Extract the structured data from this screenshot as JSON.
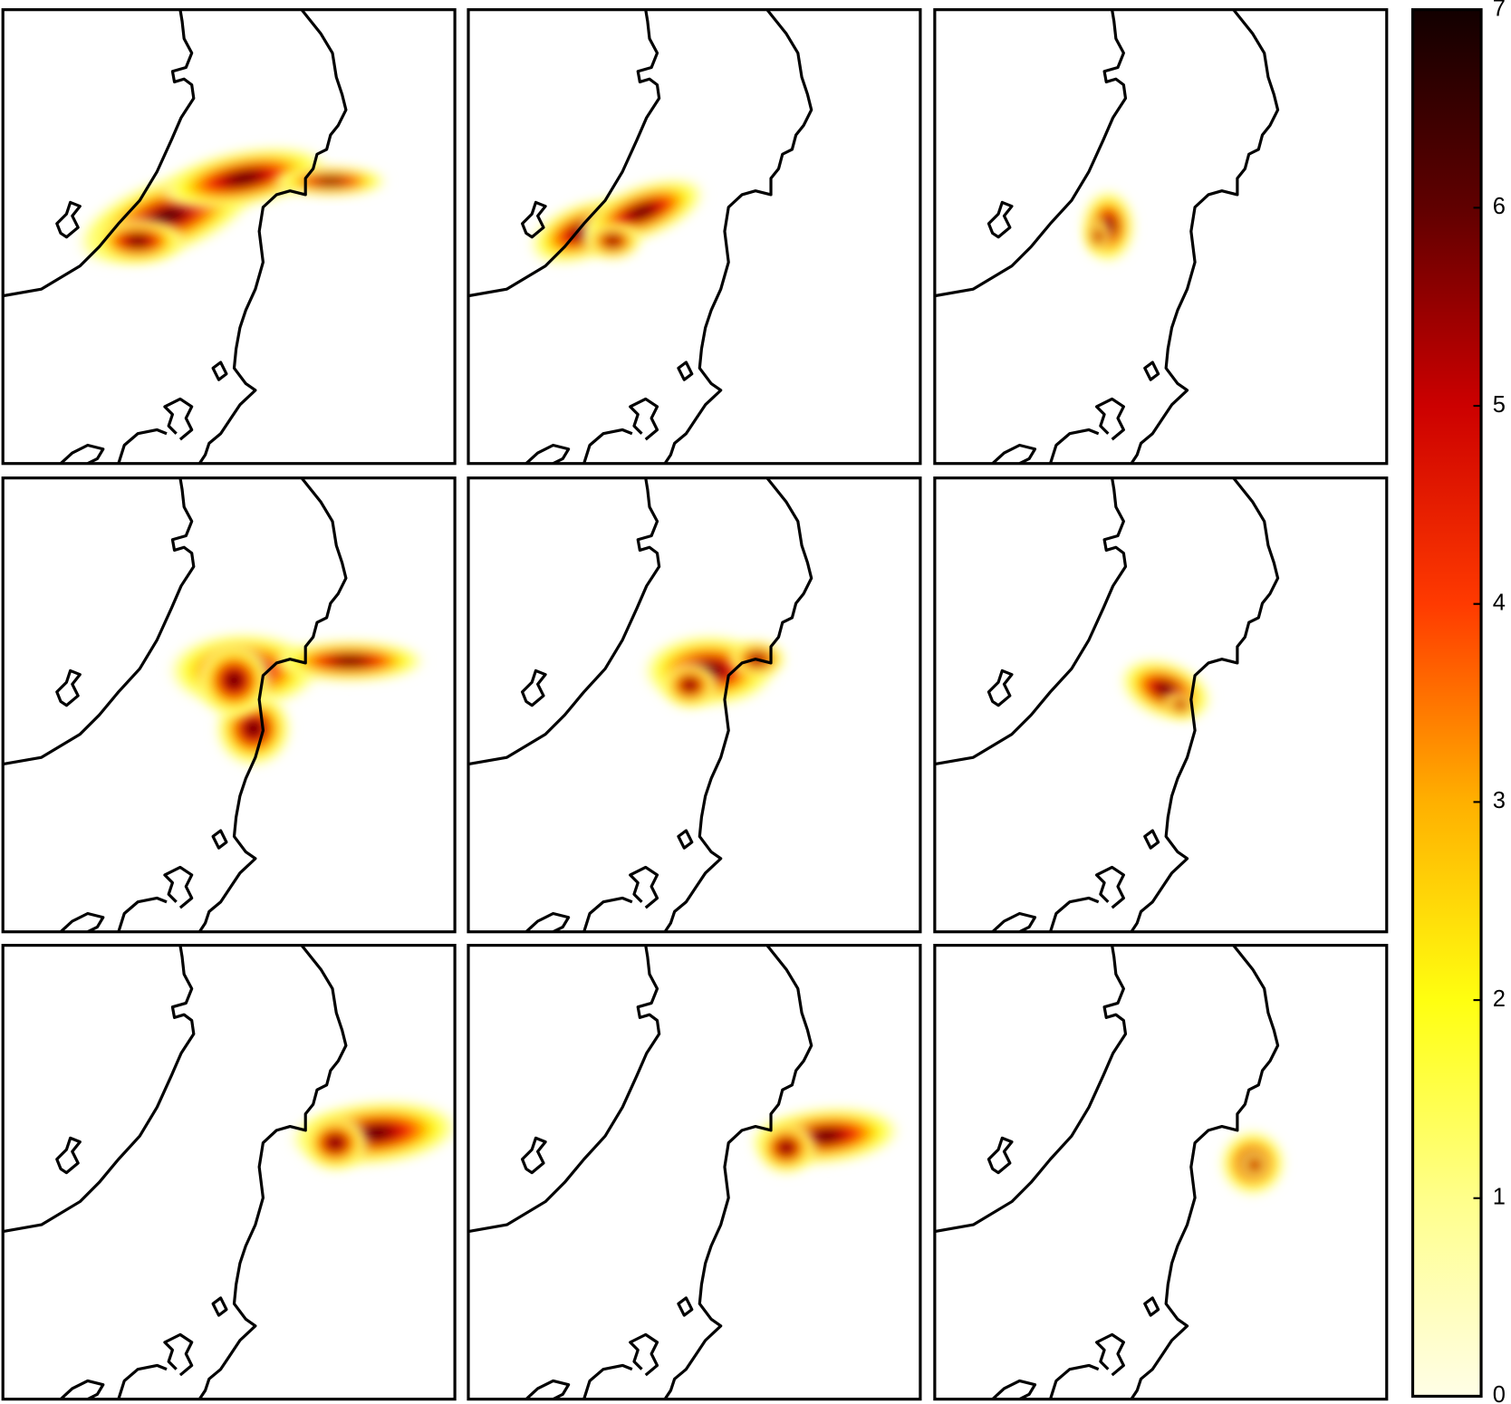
{
  "colorbar": {
    "lim": [
      0,
      7
    ],
    "ticks": [
      0,
      1,
      2,
      3,
      4,
      5,
      6,
      7
    ],
    "colormap": [
      "#fffee6",
      "#ffff8a",
      "#ffff10",
      "#ffb000",
      "#ff3a00",
      "#cc0000",
      "#600000",
      "#120000"
    ]
  }
}
